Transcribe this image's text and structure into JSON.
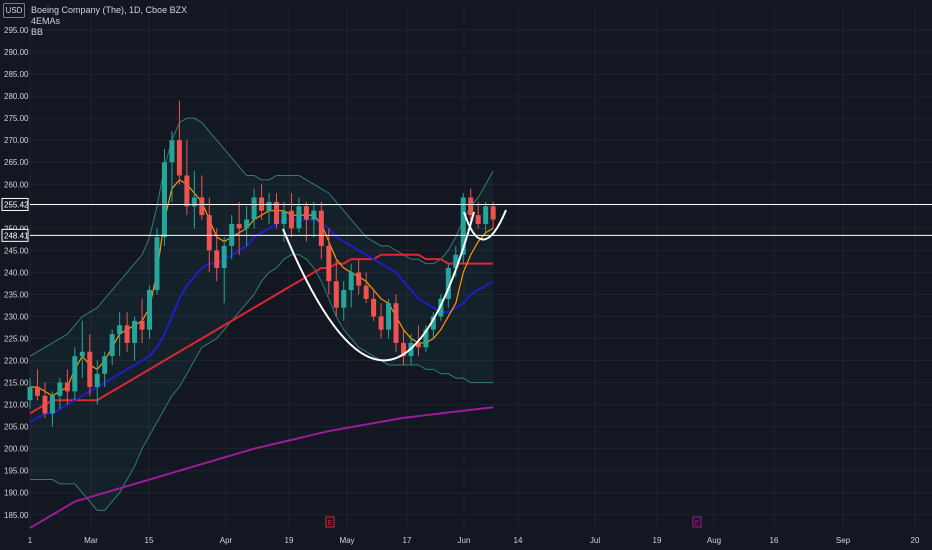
{
  "header": {
    "currency": "USD",
    "symbol_title": "Boeing Company (The), 1D, Cboe BZX",
    "indicators": [
      "4EMAs",
      "BB"
    ]
  },
  "colors": {
    "background": "#131722",
    "text": "#d1d4dc",
    "up_candle": "#26a69a",
    "down_candle": "#ef5350",
    "ema_fast": "#ff9800",
    "ema_mid": "#1e1ec8",
    "ema_slow": "#e0262e",
    "ema_long": "#9c1c98",
    "bollinger": "#2f7e74",
    "annotation": "#ffffff",
    "event_marker_earnings": "#e0262e",
    "event_marker_dividend": "#9c1c98"
  },
  "chart_data": {
    "type": "candlestick",
    "title": "Boeing Company (The), 1D, Cboe BZX",
    "y_ticks": [
      185,
      190,
      195,
      200,
      205,
      210,
      215,
      220,
      225,
      230,
      235,
      240,
      245,
      250,
      255,
      260,
      265,
      270,
      275,
      280,
      285,
      290,
      295
    ],
    "y_range": [
      182,
      300
    ],
    "x_tick_labels": [
      "1",
      "Mar",
      "15",
      "Apr",
      "19",
      "May",
      "17",
      "Jun",
      "14",
      "Jul",
      "19",
      "Aug",
      "16",
      "Sep",
      "20"
    ],
    "price_labels": [
      255.42,
      248.41
    ],
    "horizontal_levels": [
      255.42,
      248.41
    ],
    "event_markers": [
      {
        "label": "E",
        "kind": "earnings"
      },
      {
        "label": "E",
        "kind": "dividend"
      }
    ],
    "candles": [
      [
        211,
        216,
        209,
        214
      ],
      [
        214,
        218,
        211,
        212
      ],
      [
        212,
        215,
        207,
        208
      ],
      [
        208,
        213,
        205,
        212
      ],
      [
        212,
        216,
        209,
        215
      ],
      [
        215,
        218,
        210,
        213
      ],
      [
        213,
        223,
        211,
        221
      ],
      [
        221,
        229,
        216,
        222
      ],
      [
        222,
        226,
        212,
        214
      ],
      [
        214,
        220,
        210,
        217
      ],
      [
        217,
        222,
        214,
        221
      ],
      [
        221,
        227,
        219,
        226
      ],
      [
        226,
        231,
        221,
        228
      ],
      [
        228,
        231,
        222,
        224
      ],
      [
        224,
        230,
        220,
        229
      ],
      [
        229,
        234,
        224,
        227
      ],
      [
        227,
        237,
        225,
        236
      ],
      [
        236,
        250,
        235,
        248
      ],
      [
        248,
        268,
        246,
        265
      ],
      [
        265,
        272,
        256,
        270
      ],
      [
        270,
        279,
        260,
        262
      ],
      [
        262,
        270,
        253,
        255
      ],
      [
        255,
        263,
        250,
        257
      ],
      [
        257,
        262,
        252,
        253
      ],
      [
        253,
        257,
        240,
        245
      ],
      [
        245,
        250,
        238,
        241
      ],
      [
        241,
        248,
        233,
        246
      ],
      [
        246,
        253,
        243,
        251
      ],
      [
        251,
        256,
        244,
        250
      ],
      [
        250,
        255,
        246,
        252
      ],
      [
        252,
        259,
        250,
        257
      ],
      [
        257,
        260,
        252,
        254
      ],
      [
        254,
        258,
        251,
        256
      ],
      [
        256,
        258,
        250,
        251
      ],
      [
        251,
        256,
        247,
        254
      ],
      [
        254,
        258,
        248,
        250
      ],
      [
        250,
        257,
        249,
        255
      ],
      [
        255,
        256,
        247,
        252
      ],
      [
        252,
        256,
        248,
        254
      ],
      [
        254,
        256,
        243,
        246
      ],
      [
        246,
        250,
        235,
        238
      ],
      [
        238,
        243,
        230,
        232
      ],
      [
        232,
        238,
        229,
        236
      ],
      [
        236,
        242,
        232,
        240
      ],
      [
        240,
        243,
        235,
        237
      ],
      [
        237,
        240,
        233,
        234
      ],
      [
        234,
        236,
        229,
        230
      ],
      [
        230,
        233,
        225,
        227
      ],
      [
        227,
        234,
        225,
        233
      ],
      [
        233,
        235,
        222,
        224
      ],
      [
        224,
        227,
        219,
        221
      ],
      [
        221,
        226,
        219,
        224
      ],
      [
        224,
        228,
        221,
        223
      ],
      [
        223,
        228,
        222,
        227
      ],
      [
        227,
        231,
        225,
        230
      ],
      [
        230,
        235,
        229,
        234
      ],
      [
        234,
        242,
        232,
        241
      ],
      [
        241,
        246,
        239,
        244
      ],
      [
        244,
        258,
        242,
        257
      ],
      [
        257,
        259,
        250,
        253
      ],
      [
        253,
        256,
        250,
        251
      ],
      [
        251,
        256,
        249,
        255
      ],
      [
        255,
        256,
        250,
        252
      ]
    ],
    "ema_fast": [
      214,
      214,
      213,
      212,
      213,
      214,
      218,
      221,
      219,
      218,
      220,
      223,
      226,
      227,
      228,
      229,
      232,
      240,
      252,
      259,
      261,
      260,
      258,
      256,
      252,
      248,
      247,
      248,
      249,
      250,
      252,
      253,
      254,
      254,
      254,
      253,
      253,
      253,
      253,
      251,
      247,
      243,
      241,
      240,
      239,
      238,
      236,
      234,
      233,
      230,
      227,
      225,
      224,
      224,
      225,
      227,
      230,
      233,
      240,
      244,
      247,
      249,
      250
    ],
    "ema_mid": [
      206,
      207,
      208,
      208,
      209,
      210,
      211,
      212,
      213,
      214,
      215,
      216,
      217,
      218,
      219,
      220,
      221,
      223,
      226,
      230,
      234,
      237,
      239,
      241,
      242,
      242,
      243,
      244,
      245,
      246,
      248,
      249,
      250,
      251,
      252,
      252,
      252,
      252,
      252,
      251,
      250,
      248,
      247,
      246,
      245,
      244,
      243,
      242,
      241,
      240,
      238,
      236,
      234,
      233,
      232,
      231,
      231,
      232,
      233,
      235,
      236,
      237,
      238
    ],
    "ema_slow": [
      208,
      209,
      210,
      211,
      211,
      211,
      211,
      211,
      211,
      211,
      212,
      213,
      214,
      215,
      216,
      217,
      218,
      219,
      220,
      221,
      222,
      223,
      224,
      225,
      226,
      227,
      228,
      229,
      230,
      231,
      232,
      233,
      234,
      235,
      236,
      237,
      238,
      239,
      240,
      241,
      241,
      242,
      242,
      243,
      243,
      243,
      243,
      244,
      244,
      244,
      244,
      244,
      244,
      243,
      243,
      243,
      242,
      242,
      242,
      242,
      242,
      242,
      242
    ],
    "ema_long": [
      182,
      183,
      184,
      185,
      186,
      187,
      188,
      188.5,
      189,
      189.5,
      190,
      190.5,
      191,
      191.5,
      192,
      192.5,
      193,
      193.5,
      194,
      194.5,
      195,
      195.5,
      196,
      196.5,
      197,
      197.5,
      198,
      198.5,
      199,
      199.5,
      200,
      200.4,
      200.8,
      201.2,
      201.6,
      202,
      202.4,
      202.8,
      203.2,
      203.6,
      204,
      204.3,
      204.6,
      204.9,
      205.2,
      205.5,
      205.8,
      206.1,
      206.4,
      206.7,
      207,
      207.2,
      207.4,
      207.6,
      207.8,
      208,
      208.2,
      208.4,
      208.6,
      208.8,
      209,
      209.2,
      209.4
    ],
    "bb_upper": [
      221,
      222,
      223,
      224,
      225,
      226,
      228,
      230,
      231,
      232,
      234,
      236,
      238,
      240,
      242,
      244,
      248,
      255,
      264,
      270,
      274,
      275,
      275,
      274,
      272,
      270,
      268,
      266,
      264,
      262,
      262,
      261,
      261,
      262,
      262,
      262,
      262,
      261,
      260,
      259,
      258,
      256,
      254,
      252,
      250,
      248,
      247,
      246,
      246,
      245,
      244,
      243,
      243,
      242,
      242,
      243,
      245,
      248,
      252,
      255,
      257,
      260,
      263
    ],
    "bb_lower": [
      193,
      193,
      193,
      193,
      192,
      192,
      192,
      190,
      188,
      186,
      186,
      188,
      190,
      193,
      196,
      200,
      203,
      206,
      209,
      212,
      214,
      217,
      220,
      223,
      224,
      225,
      227,
      229,
      231,
      233,
      235,
      238,
      240,
      241,
      243,
      244,
      244,
      243,
      241,
      238,
      234,
      230,
      227,
      225,
      223,
      222,
      221,
      220,
      219,
      219,
      219,
      219,
      219,
      218,
      218,
      217,
      217,
      216,
      216,
      215,
      215,
      215,
      215
    ]
  }
}
